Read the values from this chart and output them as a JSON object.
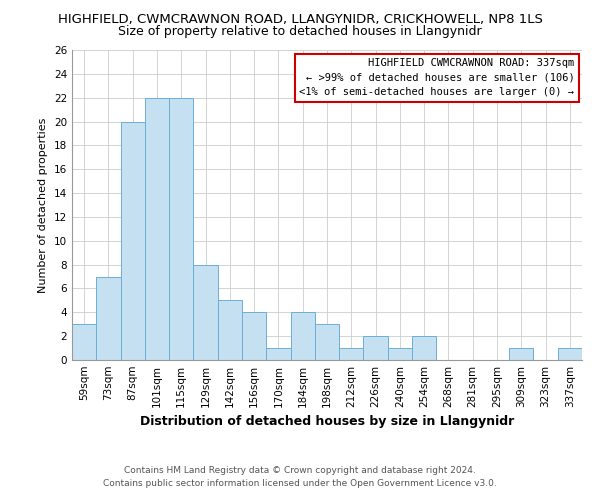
{
  "title": "HIGHFIELD, CWMCRAWNON ROAD, LLANGYNIDR, CRICKHOWELL, NP8 1LS",
  "subtitle": "Size of property relative to detached houses in Llangynidr",
  "xlabel": "Distribution of detached houses by size in Llangynidr",
  "ylabel": "Number of detached properties",
  "bar_labels": [
    "59sqm",
    "73sqm",
    "87sqm",
    "101sqm",
    "115sqm",
    "129sqm",
    "142sqm",
    "156sqm",
    "170sqm",
    "184sqm",
    "198sqm",
    "212sqm",
    "226sqm",
    "240sqm",
    "254sqm",
    "268sqm",
    "281sqm",
    "295sqm",
    "309sqm",
    "323sqm",
    "337sqm"
  ],
  "bar_values": [
    3,
    7,
    20,
    22,
    22,
    8,
    5,
    4,
    1,
    4,
    3,
    1,
    2,
    1,
    2,
    0,
    0,
    0,
    1,
    0,
    1
  ],
  "bar_color": "#c5e0f0",
  "bar_edge_color": "#6baed6",
  "ylim": [
    0,
    26
  ],
  "yticks": [
    0,
    2,
    4,
    6,
    8,
    10,
    12,
    14,
    16,
    18,
    20,
    22,
    24,
    26
  ],
  "annotation_title": "HIGHFIELD CWMCRAWNON ROAD: 337sqm",
  "annotation_line2": "← >99% of detached houses are smaller (106)",
  "annotation_line3": "<1% of semi-detached houses are larger (0) →",
  "footer_line1": "Contains HM Land Registry data © Crown copyright and database right 2024.",
  "footer_line2": "Contains public sector information licensed under the Open Government Licence v3.0.",
  "background_color": "#ffffff",
  "grid_color": "#cccccc",
  "annotation_box_color": "#ffffff",
  "annotation_box_edge": "#cc0000",
  "title_fontsize": 9.5,
  "subtitle_fontsize": 9,
  "xlabel_fontsize": 9,
  "ylabel_fontsize": 8,
  "tick_fontsize": 7.5,
  "annotation_fontsize": 7.5,
  "footer_fontsize": 6.5
}
